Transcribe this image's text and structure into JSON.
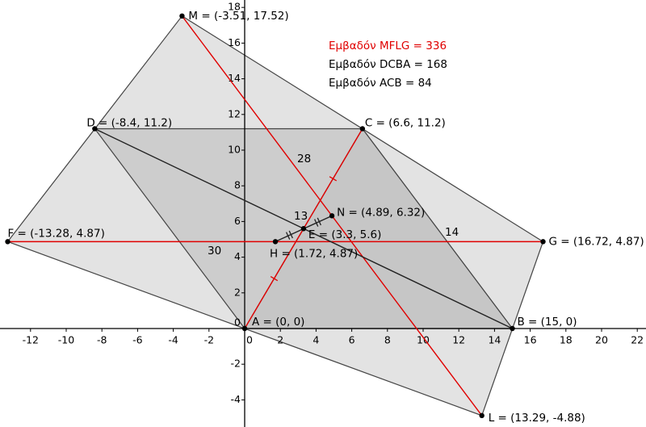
{
  "axes": {
    "xticks": [
      -12,
      -10,
      -8,
      -6,
      -4,
      -2,
      0,
      2,
      4,
      6,
      8,
      10,
      12,
      14,
      16,
      18,
      20,
      22
    ],
    "yticks": [
      -4,
      -2,
      0,
      2,
      4,
      6,
      8,
      10,
      12,
      14,
      16,
      18
    ]
  },
  "points": [
    {
      "x": -3.51,
      "y": 17.52,
      "label": "M = (-3.51, 17.52)"
    },
    {
      "x": -8.4,
      "y": 11.2,
      "label": "D = (-8.4, 11.2)"
    },
    {
      "x": 6.6,
      "y": 11.2,
      "label": "C = (6.6, 11.2)"
    },
    {
      "x": -13.28,
      "y": 4.87,
      "label": "F = (-13.28, 4.87)"
    },
    {
      "x": 16.72,
      "y": 4.87,
      "label": "G = (16.72, 4.87)"
    },
    {
      "x": 4.89,
      "y": 6.32,
      "label": "N = (4.89, 6.32)"
    },
    {
      "x": 3.3,
      "y": 5.6,
      "label": "E = (3.3, 5.6)"
    },
    {
      "x": 1.72,
      "y": 4.87,
      "label": "H = (1.72, 4.87)"
    },
    {
      "x": 0,
      "y": 0,
      "label": "A = (0, 0)"
    },
    {
      "x": 15,
      "y": 0,
      "label": "B = (15, 0)"
    },
    {
      "x": 13.29,
      "y": -4.88,
      "label": "L = (13.29, -4.88)"
    }
  ],
  "lengths": [
    "28",
    "13",
    "30",
    "14"
  ],
  "areas": [
    "Εμβαδόν MFLG = 336",
    "Εμβαδόν DCBA = 168",
    "Εμβαδόν ACB = 84"
  ]
}
